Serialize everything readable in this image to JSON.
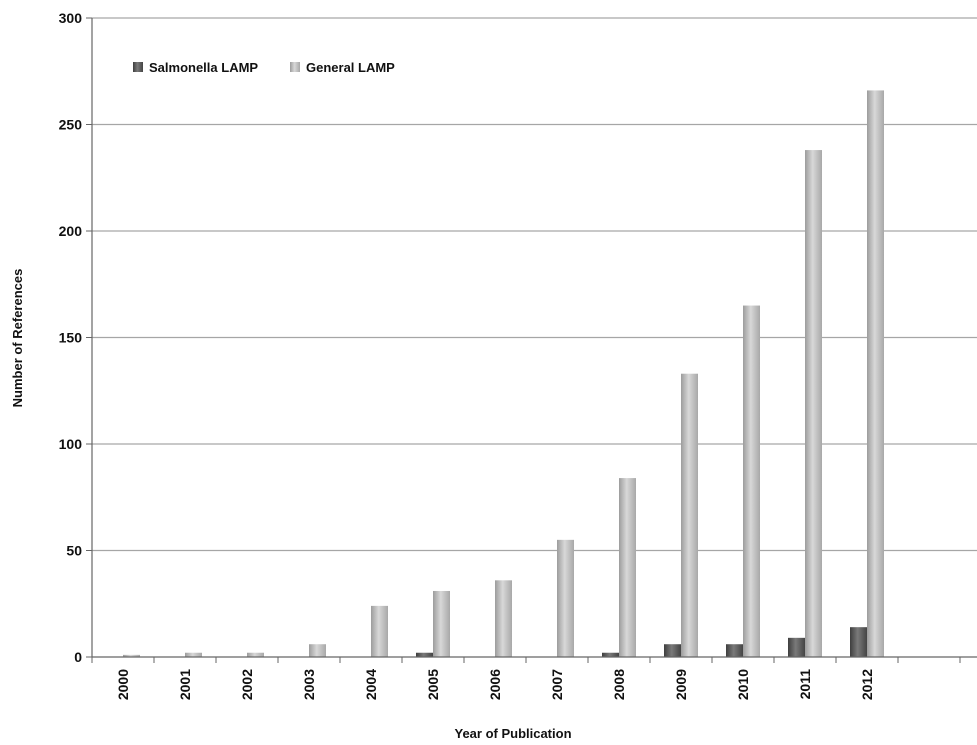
{
  "chart_data": {
    "type": "bar",
    "categories": [
      "2000",
      "2001",
      "2002",
      "2003",
      "2004",
      "2005",
      "2006",
      "2007",
      "2008",
      "2009",
      "2010",
      "2011",
      "2012"
    ],
    "series": [
      {
        "name": "Salmonella LAMP",
        "color": "#5a5a5a",
        "values": [
          0,
          0,
          0,
          0,
          0,
          2,
          0,
          0,
          2,
          6,
          6,
          9,
          14
        ]
      },
      {
        "name": "General LAMP",
        "color": "#bdbdbd",
        "values": [
          1,
          2,
          2,
          6,
          24,
          31,
          36,
          55,
          84,
          133,
          165,
          238,
          266
        ]
      }
    ],
    "xlabel": "Year of Publication",
    "ylabel": "Number of References",
    "ylim": [
      0,
      300
    ],
    "yticks": [
      "0",
      "50",
      "100",
      "150",
      "200",
      "250",
      "300"
    ],
    "grid": true,
    "legend_position": "top-left"
  }
}
